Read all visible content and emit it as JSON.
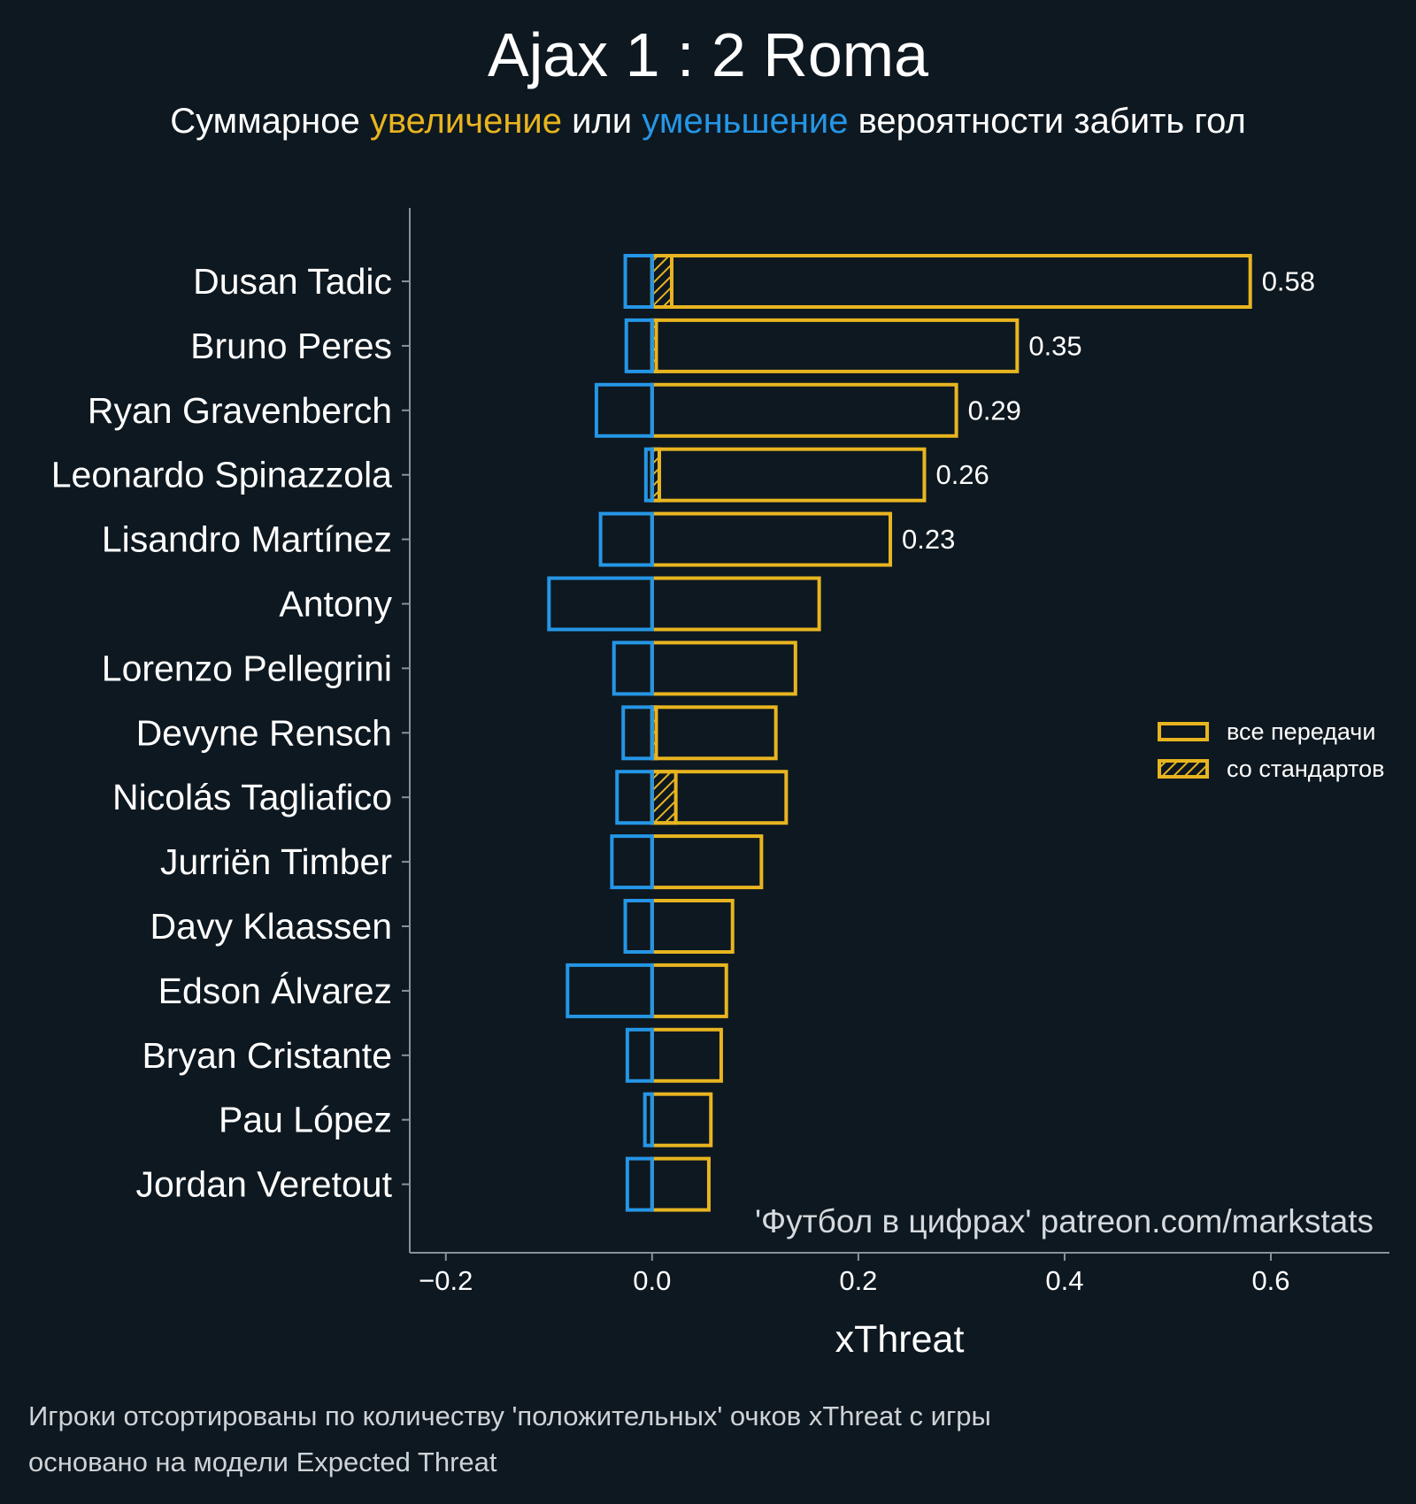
{
  "title": "Ajax 1 : 2 Roma",
  "subtitle": {
    "part1": "Суммарное ",
    "increase": "увеличение",
    "part2": " или ",
    "decrease": "уменьшение",
    "part3": " вероятности забить гол"
  },
  "colors": {
    "background": "#0e1820",
    "increase": "#e8b520",
    "decrease": "#2596e6",
    "axis": "#8a9198",
    "text": "#ffffff"
  },
  "chart_data": {
    "type": "bar",
    "orientation": "horizontal",
    "xlabel": "xThreat",
    "xlim": [
      -0.235,
      0.715
    ],
    "xticks": [
      -0.2,
      0.0,
      0.2,
      0.4,
      0.6
    ],
    "xtick_labels": [
      "−0.2",
      "0.0",
      "0.2",
      "0.4",
      "0.6"
    ],
    "categories": [
      "Dusan Tadic",
      "Bruno Peres",
      "Ryan Gravenberch",
      "Leonardo Spinazzola",
      "Lisandro Martínez",
      "Antony",
      "Lorenzo Pellegrini",
      "Devyne Rensch",
      "Nicolás Tagliafico",
      "Jurriën Timber",
      "Davy Klaassen",
      "Edson Álvarez",
      "Bryan Cristante",
      "Pau López",
      "Jordan Veretout"
    ],
    "series": [
      {
        "name": "увеличение (все передачи)",
        "values": [
          0.58,
          0.354,
          0.295,
          0.264,
          0.231,
          0.162,
          0.139,
          0.12,
          0.13,
          0.106,
          0.078,
          0.072,
          0.067,
          0.057,
          0.055
        ]
      },
      {
        "name": "уменьшение",
        "values": [
          -0.026,
          -0.025,
          -0.054,
          -0.006,
          -0.05,
          -0.1,
          -0.037,
          -0.028,
          -0.034,
          -0.039,
          -0.026,
          -0.082,
          -0.024,
          -0.007,
          -0.024
        ]
      },
      {
        "name": "со стандартов",
        "values": [
          0.019,
          0.004,
          0,
          0.007,
          0,
          0,
          0,
          0.004,
          0.023,
          0,
          0,
          0,
          0,
          0,
          0
        ]
      }
    ],
    "value_labels": [
      "0.58",
      "0.35",
      "0.29",
      "0.26",
      "0.23",
      "",
      "",
      "",
      "",
      "",
      "",
      "",
      "",
      "",
      ""
    ],
    "legend": {
      "position": "right",
      "entries": [
        "все передачи",
        "со стандартов"
      ]
    },
    "annotation": "'Футбол в цифрах' patreon.com/markstats"
  },
  "footnotes": [
    "Игроки отсортированы по количеству 'положительных' очков xThreat с игры",
    "основано на модели Expected Threat"
  ]
}
